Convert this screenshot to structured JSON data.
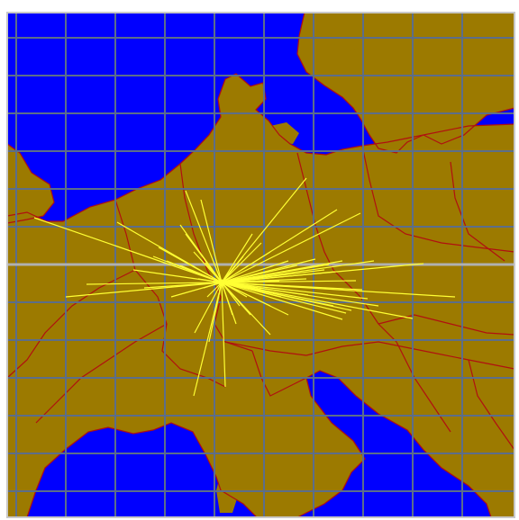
{
  "map": {
    "colors": {
      "sea": "#0000ff",
      "land": "#9c7a00",
      "border": "#b01010",
      "grid": "#5c6e8a",
      "grid_major": "#b0b0b0",
      "frame": "#c8c8c8",
      "path": "#ffff33"
    },
    "grid_columns": 10,
    "grid_rows": 13,
    "hub_label": "",
    "destination_count": 68
  }
}
